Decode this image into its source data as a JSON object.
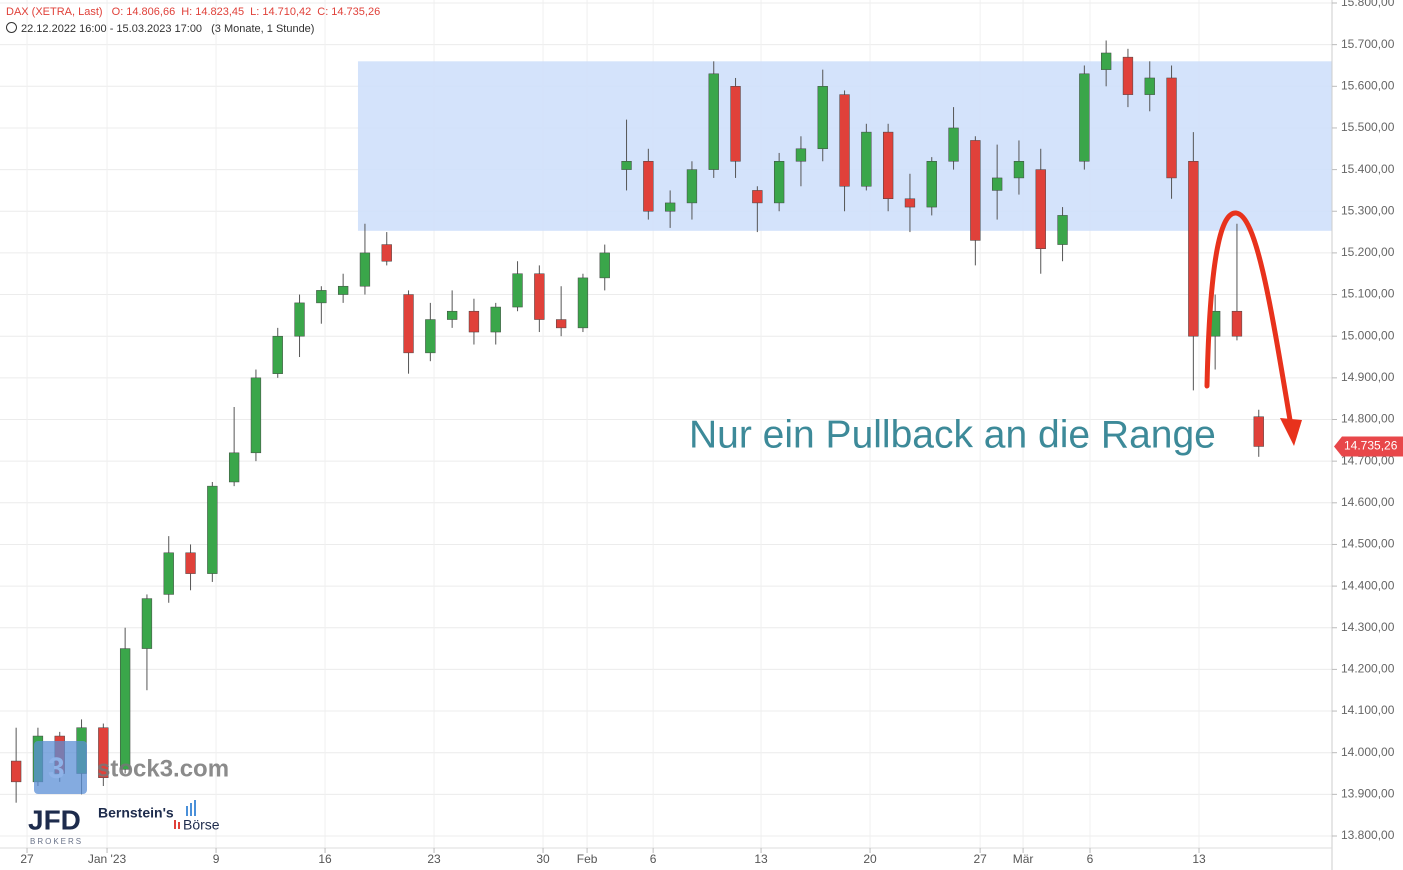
{
  "chart_data": {
    "type": "candlestick",
    "title": "DAX (XETRA, Last)",
    "stats": [
      {
        "name": "O:",
        "value": 14806.66,
        "label": "14.806,66"
      },
      {
        "name": "H:",
        "value": 14823.45,
        "label": "14.823,45"
      },
      {
        "name": "L:",
        "value": 14710.42,
        "label": "14.710,42"
      },
      {
        "name": "C:",
        "value": 14735.26,
        "label": "14.735,26"
      }
    ],
    "period": "22.12.2022 16:00 - 15.03.2023 17:00",
    "resolution": "(3 Monate, 1 Stunde)",
    "annotation": "Nur ein Pullback an die Range",
    "logos": [
      "stock3.com",
      "JFD",
      "BROKERS",
      "Bernstein's",
      "Börse"
    ],
    "up_color": "#3aa64a",
    "down_color": "#e0413a",
    "grid": true,
    "x": [
      -0.5,
      0.5,
      1.5,
      2.5,
      3.5,
      4.5,
      5.5,
      6.5,
      7.5,
      8.5,
      9.5,
      10.5,
      11.5,
      12.5,
      13.5,
      14.5,
      15.5,
      16.5,
      17.5,
      18.5,
      19.5,
      20.5,
      21.5,
      22.5,
      23.5,
      24.5,
      25.5,
      26.5,
      27.5,
      28.5,
      29.5,
      30.5,
      31.5,
      32.5,
      33.5,
      34.5,
      35.5,
      36.5,
      37.5,
      38.5,
      39.5,
      40.5,
      41.5,
      42.5,
      43.5,
      44.5,
      45.5,
      46.5,
      47.5,
      48.5,
      49.5,
      50.5,
      51.5,
      52.5,
      53.5,
      54.5,
      55.5,
      56.5
    ],
    "open": [
      13980,
      13930,
      14040,
      13950,
      14060,
      13960,
      14250,
      14380,
      14480,
      14430,
      14650,
      14720,
      14910,
      15000,
      15080,
      15100,
      15120,
      15220,
      15100,
      14960,
      15040,
      15060,
      15010,
      15070,
      15150,
      15040,
      15020,
      15140,
      15400,
      15420,
      15300,
      15320,
      15400,
      15600,
      15350,
      15320,
      15420,
      15450,
      15580,
      15360,
      15490,
      15330,
      15310,
      15420,
      15470,
      15350,
      15380,
      15400,
      15220,
      15420,
      15640,
      15670,
      15580,
      15620,
      15420,
      15000,
      15060,
      14806.66
    ],
    "high": [
      14060,
      14060,
      14050,
      14080,
      14070,
      14300,
      14380,
      14520,
      14500,
      14650,
      14830,
      14920,
      15020,
      15100,
      15120,
      15150,
      15270,
      15250,
      15110,
      15080,
      15110,
      15090,
      15080,
      15180,
      15170,
      15120,
      15150,
      15220,
      15520,
      15450,
      15350,
      15420,
      15660,
      15620,
      15360,
      15440,
      15480,
      15640,
      15590,
      15510,
      15510,
      15390,
      15430,
      15550,
      15480,
      15460,
      15470,
      15450,
      15310,
      15650,
      15710,
      15690,
      15660,
      15650,
      15490,
      15100,
      15270,
      14823.45
    ],
    "low": [
      13880,
      13920,
      13930,
      13900,
      13920,
      13950,
      14150,
      14360,
      14390,
      14410,
      14640,
      14700,
      14900,
      14950,
      15030,
      15080,
      15100,
      15170,
      14910,
      14940,
      15020,
      14980,
      14980,
      15060,
      15010,
      15000,
      15010,
      15110,
      15350,
      15280,
      15260,
      15280,
      15380,
      15380,
      15250,
      15300,
      15360,
      15420,
      15300,
      15350,
      15300,
      15250,
      15290,
      15400,
      15170,
      15280,
      15340,
      15150,
      15180,
      15400,
      15600,
      15550,
      15540,
      15330,
      14870,
      14920,
      14990,
      14710.42
    ],
    "close": [
      13930,
      14040,
      13950,
      14060,
      13940,
      14250,
      14370,
      14480,
      14430,
      14640,
      14720,
      14900,
      15000,
      15080,
      15110,
      15120,
      15200,
      15180,
      14960,
      15040,
      15060,
      15010,
      15070,
      15150,
      15040,
      15020,
      15140,
      15200,
      15420,
      15300,
      15320,
      15400,
      15630,
      15420,
      15320,
      15420,
      15450,
      15600,
      15360,
      15490,
      15330,
      15310,
      15420,
      15500,
      15230,
      15380,
      15420,
      15210,
      15290,
      15630,
      15680,
      15580,
      15620,
      15380,
      15000,
      15060,
      15000,
      14735.26
    ],
    "range": {
      "from": 15.18,
      "to": 59.86,
      "low": 15253,
      "high": 15660
    },
    "last_price": {
      "value": 14735.26,
      "label": "14.735,26"
    },
    "xlim": [
      -1.24,
      59.86
    ],
    "xticks": [
      {
        "value": 0,
        "label": "27"
      },
      {
        "value": 3.67,
        "label": "Jan '23"
      },
      {
        "value": 8.67,
        "label": "9"
      },
      {
        "value": 13.67,
        "label": "16"
      },
      {
        "value": 18.67,
        "label": "23"
      },
      {
        "value": 23.67,
        "label": "30"
      },
      {
        "value": 25.69,
        "label": "Feb"
      },
      {
        "value": 28.72,
        "label": "6"
      },
      {
        "value": 33.67,
        "label": "13"
      },
      {
        "value": 38.67,
        "label": "20"
      },
      {
        "value": 43.72,
        "label": "27"
      },
      {
        "value": 45.69,
        "label": "Mär"
      },
      {
        "value": 48.76,
        "label": "6"
      },
      {
        "value": 53.76,
        "label": "13"
      }
    ],
    "ylim": [
      13800,
      15800
    ],
    "yticks": [
      {
        "value": 13800,
        "label": "13.800,00"
      },
      {
        "value": 13900,
        "label": "13.900,00"
      },
      {
        "value": 14000,
        "label": "14.000,00"
      },
      {
        "value": 14100,
        "label": "14.100,00"
      },
      {
        "value": 14200,
        "label": "14.200,00"
      },
      {
        "value": 14300,
        "label": "14.300,00"
      },
      {
        "value": 14400,
        "label": "14.400,00"
      },
      {
        "value": 14500,
        "label": "14.500,00"
      },
      {
        "value": 14600,
        "label": "14.600,00"
      },
      {
        "value": 14700,
        "label": "14.700,00"
      },
      {
        "value": 14800,
        "label": "14.800,00"
      },
      {
        "value": 14900,
        "label": "14.900,00"
      },
      {
        "value": 15000,
        "label": "15.000,00"
      },
      {
        "value": 15100,
        "label": "15.100,00"
      },
      {
        "value": 15200,
        "label": "15.200,00"
      },
      {
        "value": 15300,
        "label": "15.300,00"
      },
      {
        "value": 15400,
        "label": "15.400,00"
      },
      {
        "value": 15500,
        "label": "15.500,00"
      },
      {
        "value": 15600,
        "label": "15.600,00"
      },
      {
        "value": 15700,
        "label": "15.700,00"
      },
      {
        "value": 15800,
        "label": "15.800,00"
      }
    ]
  }
}
